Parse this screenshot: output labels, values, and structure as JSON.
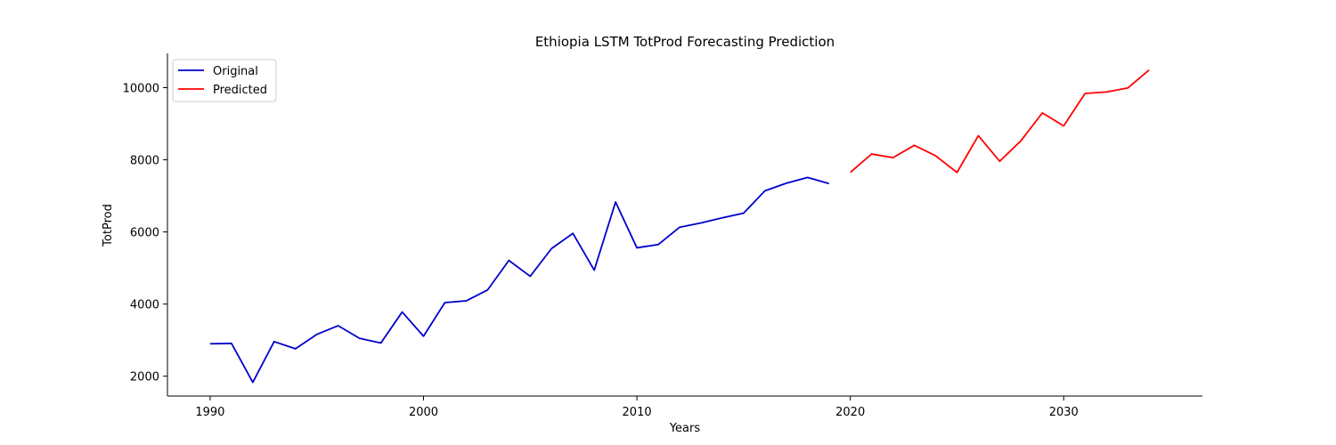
{
  "chart_data": {
    "type": "line",
    "title": "Ethiopia LSTM TotProd Forecasting Prediction",
    "xlabel": "Years",
    "ylabel": "TotProd",
    "xlim": [
      1988,
      2036.5
    ],
    "ylim": [
      1450,
      10950
    ],
    "xticks": [
      1990,
      2000,
      2010,
      2020,
      2030
    ],
    "yticks": [
      2000,
      4000,
      6000,
      8000,
      10000
    ],
    "grid": false,
    "legend_position": "top-left",
    "series": [
      {
        "name": "Original",
        "color": "#0000cd",
        "x": [
          1990,
          1991,
          1992,
          1993,
          1994,
          1995,
          1996,
          1997,
          1998,
          1999,
          2000,
          2001,
          2002,
          2003,
          2004,
          2005,
          2006,
          2007,
          2008,
          2009,
          2010,
          2011,
          2012,
          2013,
          2014,
          2015,
          2016,
          2017,
          2018,
          2019
        ],
        "values": [
          2900,
          2910,
          1830,
          2960,
          2760,
          3160,
          3400,
          3050,
          2920,
          3780,
          3110,
          4040,
          4090,
          4390,
          5210,
          4770,
          5540,
          5960,
          4940,
          6830,
          5560,
          5650,
          6130,
          6250,
          6390,
          6520,
          7140,
          7350,
          7510,
          7340
        ]
      },
      {
        "name": "Predicted",
        "color": "#ff0000",
        "x": [
          2020,
          2021,
          2022,
          2023,
          2024,
          2025,
          2026,
          2027,
          2028,
          2029,
          2030,
          2031,
          2032,
          2033,
          2034
        ],
        "values": [
          7650,
          8160,
          8060,
          8400,
          8110,
          7650,
          8670,
          7960,
          8530,
          9300,
          8940,
          9840,
          9880,
          9990,
          10490
        ]
      }
    ]
  }
}
